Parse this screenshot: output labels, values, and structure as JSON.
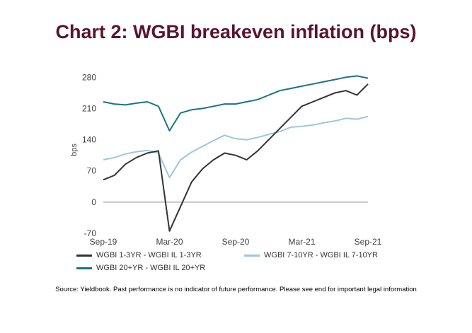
{
  "title": "Chart 2: WGBI breakeven inflation (bps)",
  "source": "Source: Yieldbook. Past performance is no indicator of future performance. Please see end for important legal information",
  "chart_data": {
    "type": "line",
    "title": "Chart 2: WGBI breakeven inflation (bps)",
    "xlabel": "",
    "ylabel": "bps",
    "ylim": [
      -70,
      290
    ],
    "yticks": [
      "280",
      "210",
      "140",
      "70",
      "0",
      "-70"
    ],
    "xticks": [
      "Sep-19",
      "Mar-20",
      "Sep-20",
      "Mar-21",
      "Sep-21"
    ],
    "grid": false,
    "zero_line": true,
    "legend_position": "bottom",
    "x": [
      "2019-09",
      "2019-10",
      "2019-11",
      "2019-12",
      "2020-01",
      "2020-02",
      "2020-03",
      "2020-04",
      "2020-05",
      "2020-06",
      "2020-07",
      "2020-08",
      "2020-09",
      "2020-10",
      "2020-11",
      "2020-12",
      "2021-01",
      "2021-02",
      "2021-03",
      "2021-04",
      "2021-05",
      "2021-06",
      "2021-07",
      "2021-08",
      "2021-09"
    ],
    "series": [
      {
        "name": "WGBI 1-3YR - WGBI IL 1-3YR",
        "color": "#333333",
        "values": [
          50,
          60,
          85,
          100,
          110,
          115,
          -65,
          -10,
          45,
          75,
          95,
          110,
          105,
          95,
          115,
          140,
          165,
          190,
          215,
          225,
          235,
          245,
          250,
          240,
          265
        ]
      },
      {
        "name": "WGBI 7-10YR - WGBI IL 7-10YR",
        "color": "#9cc7da",
        "values": [
          95,
          100,
          108,
          113,
          116,
          110,
          55,
          95,
          112,
          125,
          138,
          150,
          142,
          140,
          145,
          152,
          158,
          168,
          170,
          173,
          178,
          182,
          188,
          186,
          192
        ]
      },
      {
        "name": "WGBI 20+YR - WGBI IL 20+YR",
        "color": "#1a7388",
        "values": [
          225,
          220,
          218,
          222,
          225,
          215,
          160,
          200,
          207,
          210,
          215,
          220,
          220,
          225,
          230,
          240,
          250,
          255,
          260,
          265,
          270,
          275,
          280,
          283,
          278
        ]
      }
    ]
  }
}
